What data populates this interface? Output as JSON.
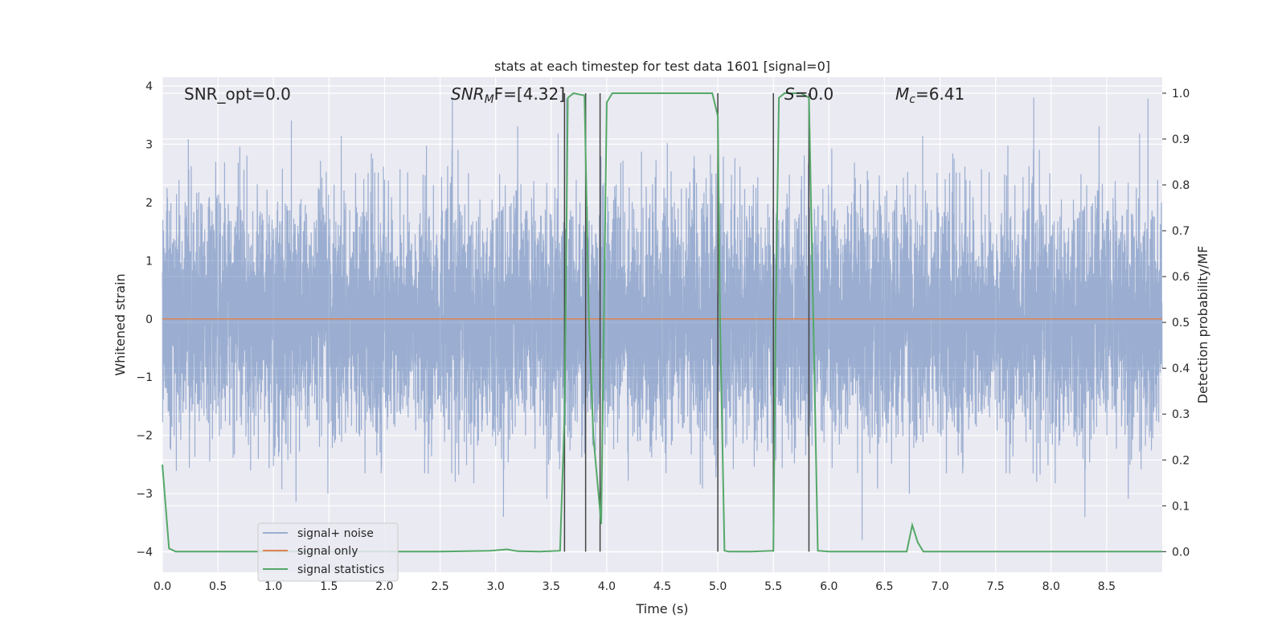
{
  "chart_data": {
    "type": "line",
    "title": "stats at each timestep for test data 1601 [signal=0]",
    "xlabel": "Time (s)",
    "ylabel_left": "Whitened strain",
    "ylabel_right": "Detection probability/MF",
    "xlim": [
      0.0,
      9.0
    ],
    "ylim_left": [
      -4.35,
      4.15
    ],
    "ylim_right": [
      -0.045,
      1.035
    ],
    "x_ticks": [
      "0.0",
      "0.5",
      "1.0",
      "1.5",
      "2.0",
      "2.5",
      "3.0",
      "3.5",
      "4.0",
      "4.5",
      "5.0",
      "5.5",
      "6.0",
      "6.5",
      "7.0",
      "7.5",
      "8.0",
      "8.5"
    ],
    "y_ticks_left": [
      "−4",
      "−3",
      "−2",
      "−1",
      "0",
      "1",
      "2",
      "3",
      "4"
    ],
    "y_ticks_right": [
      "0.0",
      "0.1",
      "0.2",
      "0.3",
      "0.4",
      "0.5",
      "0.6",
      "0.7",
      "0.8",
      "0.9",
      "1.0"
    ],
    "grid": true,
    "legend_position": "lower-left",
    "colors": {
      "plot_bg": "#eaeaf2",
      "grid": "#ffffff",
      "noise": "#4c72b0",
      "signal": "#dd8452",
      "stats": "#55a868",
      "vline": "#444444"
    },
    "annotations": {
      "snr_opt": "SNR_opt=0.0",
      "snr_mf_prefix": "SNR",
      "snr_mf_sub": "M",
      "snr_mf_suffix": "F=[4.32]",
      "s_prefix": "S",
      "s_suffix": "=0.0",
      "mc_prefix": "M",
      "mc_sub": "c",
      "mc_suffix": "=6.41"
    },
    "series": [
      {
        "name": "signal+ noise",
        "axis": "left",
        "description": "whitened noise samples, envelope roughly ±2.5 with peaks to ±3.8",
        "amplitude_sigma": 1.0
      },
      {
        "name": "signal only",
        "axis": "left",
        "x": [
          0.0,
          9.0
        ],
        "y": [
          0.0,
          0.0
        ]
      },
      {
        "name": "signal statistics",
        "axis": "right",
        "x": [
          0.0,
          0.06,
          0.12,
          0.5,
          1.0,
          1.5,
          2.0,
          2.5,
          2.95,
          3.1,
          3.2,
          3.4,
          3.58,
          3.62,
          3.65,
          3.7,
          3.8,
          3.84,
          3.88,
          3.95,
          4.0,
          4.05,
          4.5,
          4.95,
          5.0,
          5.02,
          5.06,
          5.1,
          5.3,
          5.5,
          5.52,
          5.55,
          5.6,
          5.75,
          5.82,
          5.86,
          5.9,
          6.0,
          6.5,
          6.7,
          6.75,
          6.8,
          6.85,
          7.0,
          7.5,
          8.0,
          8.5,
          9.0
        ],
        "y": [
          0.19,
          0.007,
          0.0,
          0.0,
          0.0,
          0.0,
          0.0,
          0.0,
          0.002,
          0.005,
          0.001,
          0.0,
          0.002,
          0.3,
          0.99,
          1.0,
          0.995,
          0.5,
          0.25,
          0.06,
          0.98,
          1.0,
          1.0,
          1.0,
          0.95,
          0.5,
          0.002,
          0.0,
          0.0,
          0.002,
          0.5,
          0.99,
          1.0,
          1.0,
          0.99,
          0.5,
          0.002,
          0.0,
          0.0,
          0.0,
          0.058,
          0.02,
          0.0,
          0.0,
          0.0,
          0.0,
          0.0,
          0.0
        ]
      }
    ],
    "vertical_lines_x": [
      3.62,
      3.81,
      3.94,
      5.0,
      5.5,
      5.82
    ]
  }
}
